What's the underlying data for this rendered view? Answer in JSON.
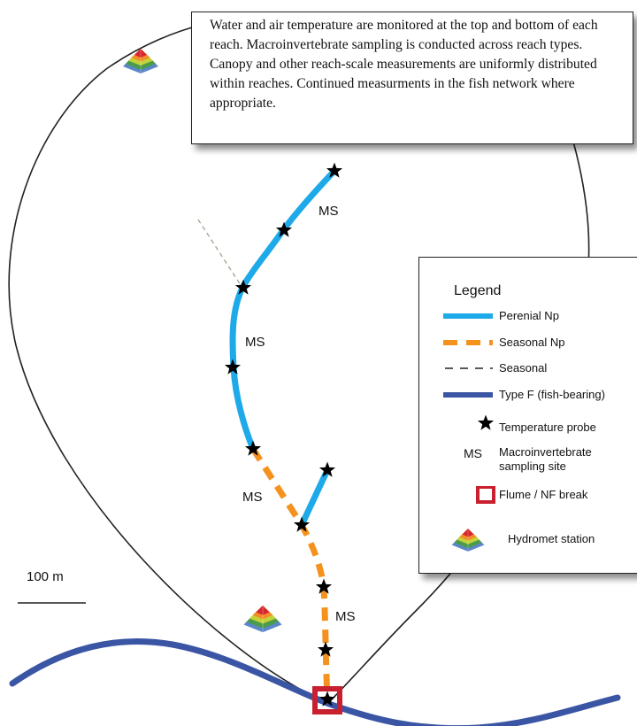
{
  "info_box": {
    "text": "Water and air temperature are monitored at the top and bottom of each reach.  Macroinvertebrate sampling is conducted across reach types.  Canopy and other reach-scale measurements are uniformly distributed within reaches. Continued measurments in the fish network where appropriate."
  },
  "map_labels": {
    "ms_1": "MS",
    "ms_2": "MS",
    "ms_3": "MS",
    "ms_4": "MS",
    "scale": "100 m"
  },
  "legend": {
    "title": "Legend",
    "perennial": "Perenial Np",
    "seasonal_np": "Seasonal Np",
    "seasonal": "Seasonal",
    "type_f": "Type F (fish-bearing)",
    "temp_probe": "Temperature probe",
    "ms_symbol": "MS",
    "macro_line1": "Macroinvertebrate",
    "macro_line2": "sampling site",
    "flume": "Flume / NF break",
    "hydromet": "Hydromet station"
  },
  "colors": {
    "perennial": "#1ea9e8",
    "seasonal_np": "#f5921e",
    "type_f": "#3a55a4",
    "flume": "#c8202f",
    "boundary": "#222222"
  },
  "icons": [
    "star-icon",
    "pyramid-icon",
    "flume-square-icon"
  ]
}
